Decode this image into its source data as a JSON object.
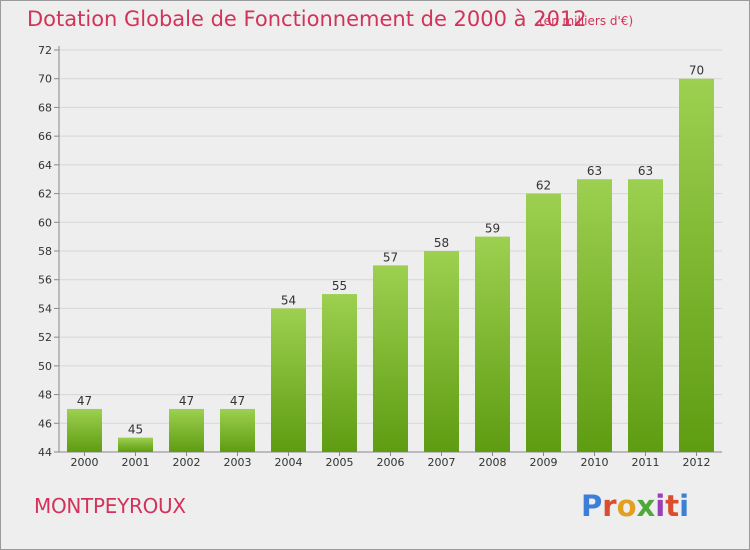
{
  "header": {
    "title": "Dotation Globale de Fonctionnement de 2000 à 2012",
    "unit": "(en milliers d'€)"
  },
  "footer": {
    "town": "MONTPEYROUX",
    "logo": "Proxiti",
    "logo_colors": [
      "#3d7fd6",
      "#d94e2e",
      "#e0a020",
      "#4fa83a",
      "#9a3fb8",
      "#d94e2e",
      "#3d7fd6"
    ]
  },
  "chart_data": {
    "type": "bar",
    "categories": [
      "2000",
      "2001",
      "2002",
      "2003",
      "2004",
      "2005",
      "2006",
      "2007",
      "2008",
      "2009",
      "2010",
      "2011",
      "2012"
    ],
    "values": [
      47,
      45,
      47,
      47,
      54,
      55,
      57,
      58,
      59,
      62,
      63,
      63,
      70
    ],
    "title": "Dotation Globale de Fonctionnement de 2000 à 2012",
    "xlabel": "",
    "ylabel": "",
    "ylim": [
      44,
      72
    ],
    "yticks": [
      44,
      46,
      48,
      50,
      52,
      54,
      56,
      58,
      60,
      62,
      64,
      66,
      68,
      70,
      72
    ],
    "grid": true,
    "bar_color_light": "#9dd050",
    "bar_color_dark": "#5e9c12"
  }
}
